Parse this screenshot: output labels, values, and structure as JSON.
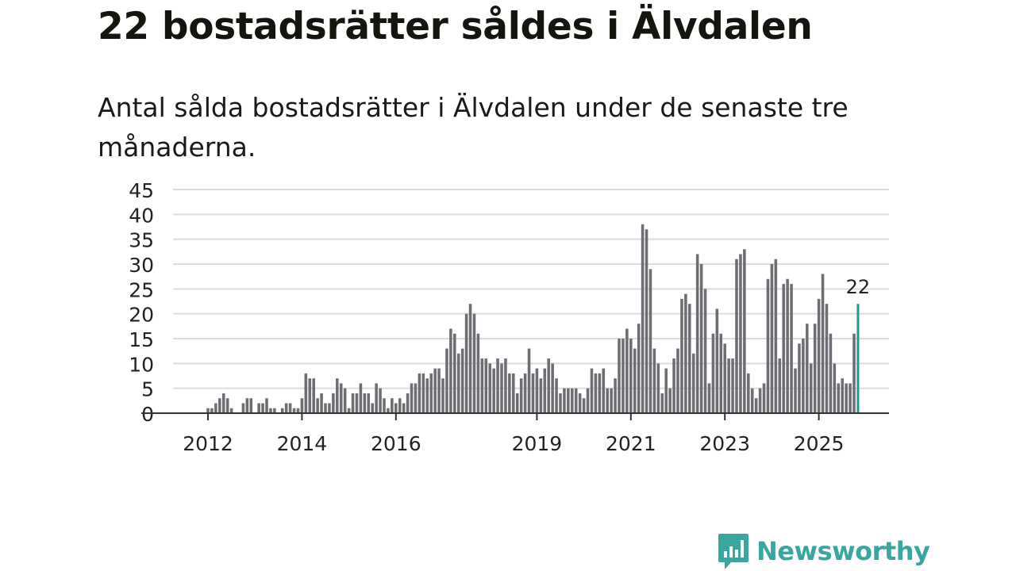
{
  "title": "22 bostadsrätter såldes i Älvdalen",
  "subtitle": "Antal sålda bostadsrätter i Älvdalen under de senaste tre månaderna.",
  "brand": {
    "name": "Newsworthy",
    "icon": "newsworthy-chart-bubble-icon",
    "color": "#3aa6a0"
  },
  "chart_data": {
    "type": "bar",
    "title": "22 bostadsrätter såldes i Älvdalen",
    "subtitle": "Antal sålda bostadsrätter i Älvdalen under de senaste tre månaderna.",
    "xlabel": "",
    "ylabel": "",
    "ylim": [
      0,
      45
    ],
    "yticks": [
      0,
      5,
      10,
      15,
      20,
      25,
      30,
      35,
      40,
      45
    ],
    "grid": true,
    "bar_color": "#6e6d73",
    "highlight_color": "#1a9c8e",
    "highlight_label": "22",
    "xlim": [
      2011.25,
      2026.5
    ],
    "xticks": [
      2012,
      2014,
      2016,
      2019,
      2021,
      2023,
      2025
    ],
    "xtick_labels": [
      "2012",
      "2014",
      "2016",
      "2019",
      "2021",
      "2023",
      "2025"
    ],
    "start": 2012.0,
    "step_months": 1,
    "values": [
      1,
      1,
      2,
      3,
      4,
      3,
      1,
      0,
      0,
      2,
      3,
      3,
      0,
      2,
      2,
      3,
      1,
      1,
      0,
      1,
      2,
      2,
      1,
      1,
      3,
      8,
      7,
      7,
      3,
      4,
      2,
      2,
      4,
      7,
      6,
      5,
      1,
      4,
      4,
      6,
      4,
      4,
      2,
      6,
      5,
      3,
      1,
      3,
      2,
      3,
      2,
      4,
      6,
      6,
      8,
      8,
      7,
      8,
      9,
      9,
      7,
      13,
      17,
      16,
      12,
      13,
      20,
      22,
      20,
      16,
      11,
      11,
      10,
      9,
      11,
      10,
      11,
      8,
      8,
      4,
      7,
      8,
      13,
      8,
      9,
      7,
      9,
      11,
      10,
      7,
      4,
      5,
      5,
      5,
      5,
      4,
      3,
      5,
      9,
      8,
      8,
      9,
      5,
      5,
      7,
      15,
      15,
      17,
      15,
      13,
      18,
      38,
      37,
      29,
      13,
      10,
      4,
      9,
      5,
      11,
      13,
      23,
      24,
      22,
      12,
      32,
      30,
      25,
      6,
      16,
      21,
      16,
      14,
      11,
      11,
      31,
      32,
      33,
      8,
      5,
      3,
      5,
      6,
      27,
      30,
      31,
      11,
      26,
      27,
      26,
      9,
      14,
      15,
      18,
      10,
      18,
      23,
      28,
      22,
      16,
      10,
      6,
      7,
      6,
      6,
      16,
      22
    ]
  }
}
